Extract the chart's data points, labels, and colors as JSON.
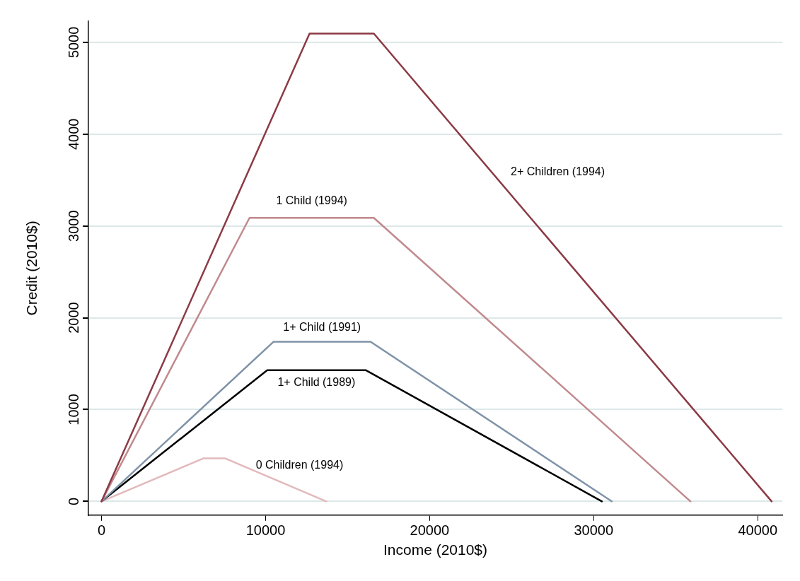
{
  "chart_data": {
    "type": "line",
    "xlabel": "Income (2010$)",
    "ylabel": "Credit (2010$)",
    "xlim": [
      -800,
      41500
    ],
    "ylim": [
      -150,
      5230
    ],
    "xticks": [
      0,
      10000,
      20000,
      30000,
      40000
    ],
    "yticks": [
      0,
      1000,
      2000,
      3000,
      4000,
      5000
    ],
    "grid": "y",
    "legend": false,
    "marker": "none",
    "line_style": "solid",
    "series": [
      {
        "name": "2+ Children (1994)",
        "color": "#8b3a45",
        "x": [
          0,
          12680,
          16600,
          40850
        ],
        "values": [
          0,
          5095,
          5095,
          0
        ]
      },
      {
        "name": "1 Child (1994)",
        "color": "#c08a8e",
        "x": [
          0,
          9020,
          16600,
          35900
        ],
        "values": [
          0,
          3088,
          3088,
          0
        ]
      },
      {
        "name": "1+ Child (1991)",
        "color": "#7f93a8",
        "x": [
          0,
          10480,
          16400,
          31100
        ],
        "values": [
          0,
          1738,
          1738,
          0
        ]
      },
      {
        "name": "1+ Child (1989)",
        "color": "#000000",
        "x": [
          0,
          10100,
          16100,
          30500
        ],
        "values": [
          0,
          1429,
          1429,
          0
        ]
      },
      {
        "name": "0 Children (1994)",
        "color": "#e2b9bc",
        "x": [
          0,
          6200,
          7550,
          13700
        ],
        "values": [
          0,
          468,
          468,
          0
        ]
      }
    ]
  }
}
